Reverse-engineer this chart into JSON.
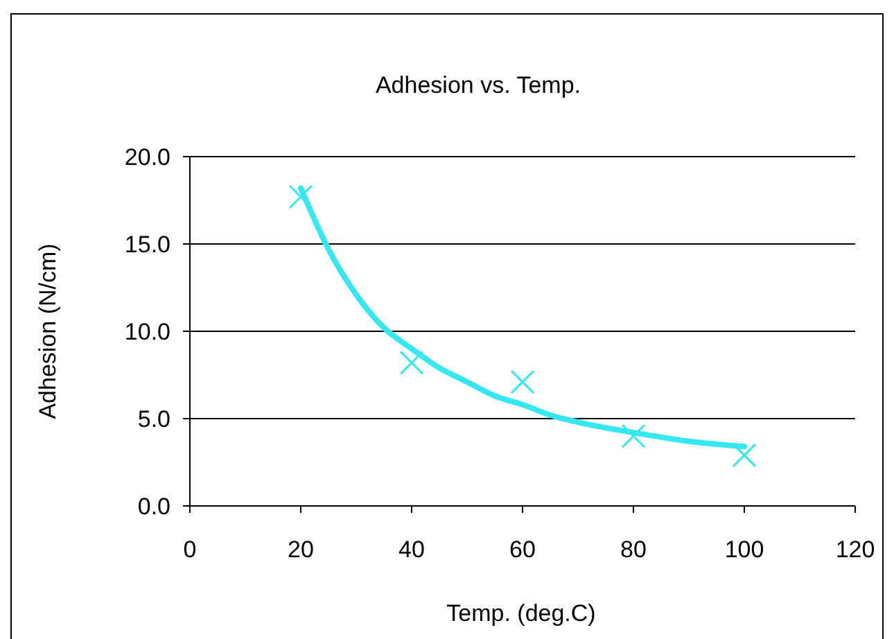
{
  "chart_data": {
    "type": "scatter",
    "title": "Adhesion vs. Temp.",
    "xlabel": "Temp. (deg.C)",
    "ylabel": "Adhesion (N/cm)",
    "xlim": [
      0,
      120
    ],
    "xticks": [
      0,
      20,
      40,
      60,
      80,
      100,
      120
    ],
    "ylim": [
      0,
      20
    ],
    "yticks": [
      {
        "value": 0,
        "label": "0.0"
      },
      {
        "value": 5,
        "label": "5.0"
      },
      {
        "value": 10,
        "label": "10.0"
      },
      {
        "value": 15,
        "label": "15.0"
      },
      {
        "value": 20,
        "label": "20.0"
      }
    ],
    "grid": "y",
    "series": [
      {
        "color": "#33e8f0",
        "marker": "cross",
        "x": [
          20,
          40,
          60,
          80,
          100
        ],
        "values": [
          17.7,
          8.2,
          7.1,
          4.0,
          2.9
        ]
      },
      {
        "type": "line",
        "color": "#33e8f0",
        "marker": "none",
        "line_style": "solid",
        "x": [
          20,
          25,
          30,
          35,
          40,
          45,
          50,
          55,
          60,
          65,
          70,
          80,
          90,
          100
        ],
        "values": [
          18.2,
          14.7,
          12.1,
          10.2,
          9.0,
          7.9,
          7.1,
          6.3,
          5.8,
          5.2,
          4.8,
          4.2,
          3.7,
          3.4
        ]
      }
    ]
  }
}
